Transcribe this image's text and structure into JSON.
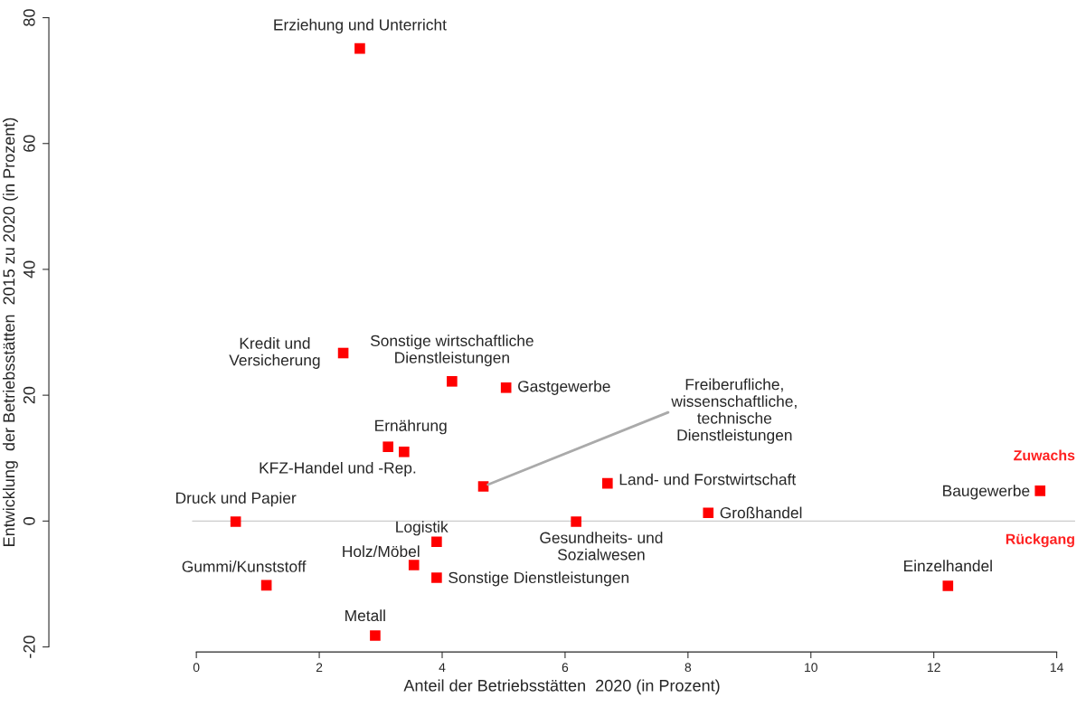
{
  "chart_data": {
    "type": "scatter",
    "xlabel": "Anteil der Betriebsstätten  2020 (in Prozent)",
    "ylabel": "Entwicklung  der Betriebsstätten  2015 zu 2020 (in Prozent)",
    "x": [
      2.66,
      2.39,
      4.16,
      5.04,
      3.12,
      3.38,
      4.67,
      6.69,
      8.33,
      13.73,
      0.64,
      6.18,
      3.91,
      3.54,
      3.91,
      1.14,
      12.23,
      2.91
    ],
    "series": [
      {
        "color": "#ff0000",
        "values": [
          75.1,
          26.7,
          22.2,
          21.2,
          11.8,
          11.0,
          5.5,
          6.0,
          1.3,
          4.8,
          -0.1,
          -0.1,
          -3.3,
          -7.0,
          -9.0,
          -10.2,
          -10.3,
          -18.2
        ]
      }
    ],
    "marker": "square",
    "grid": false,
    "xlim": [
      -2.4,
      14.3
    ],
    "ylim": [
      -20,
      80
    ],
    "xticks": [
      0,
      2,
      4,
      6,
      8,
      10,
      12,
      14
    ],
    "yticks": [
      -20,
      0,
      20,
      40,
      60,
      80
    ],
    "ref_lines": [
      {
        "axis": "y",
        "value": 0,
        "color": "#cccccc"
      }
    ],
    "annotations": [
      {
        "text": "Erziehung und Unterricht",
        "x": 2.66,
        "y": 75.1
      },
      {
        "text": "Kredit und\nVersicherung",
        "x": 2.39,
        "y": 26.7
      },
      {
        "text": "Sonstige wirtschaftliche\nDienstleistungen",
        "x": 4.16,
        "y": 22.2
      },
      {
        "text": "Gastgewerbe",
        "x": 5.04,
        "y": 21.2
      },
      {
        "text": "Ernährung",
        "x": 3.12,
        "y": 11.8
      },
      {
        "text": "KFZ-Handel und -Rep.",
        "x": 3.38,
        "y": 11.0
      },
      {
        "text": "Freiberufliche,\nwissenschaftliche,\ntechnische\nDienstleistungen",
        "x": 4.67,
        "y": 5.5
      },
      {
        "text": "Land- und Forstwirtschaft",
        "x": 6.69,
        "y": 6.0
      },
      {
        "text": "Großhandel",
        "x": 8.33,
        "y": 1.3
      },
      {
        "text": "Baugewerbe",
        "x": 13.73,
        "y": 4.8
      },
      {
        "text": "Druck und Papier",
        "x": 0.64,
        "y": -0.1
      },
      {
        "text": "Gesundheits- und\nSozialwesen",
        "x": 6.18,
        "y": -0.1
      },
      {
        "text": "Logistik",
        "x": 3.91,
        "y": -3.3
      },
      {
        "text": "Holz/Möbel",
        "x": 3.54,
        "y": -7.0
      },
      {
        "text": "Sonstige Dienstleistungen",
        "x": 3.91,
        "y": -9.0
      },
      {
        "text": "Gummi/Kunststoff",
        "x": 1.14,
        "y": -10.2
      },
      {
        "text": "Einzelhandel",
        "x": 12.23,
        "y": -10.3
      },
      {
        "text": "Metall",
        "x": 2.91,
        "y": -18.2
      },
      "Zuwachs",
      "Rückgang"
    ]
  }
}
